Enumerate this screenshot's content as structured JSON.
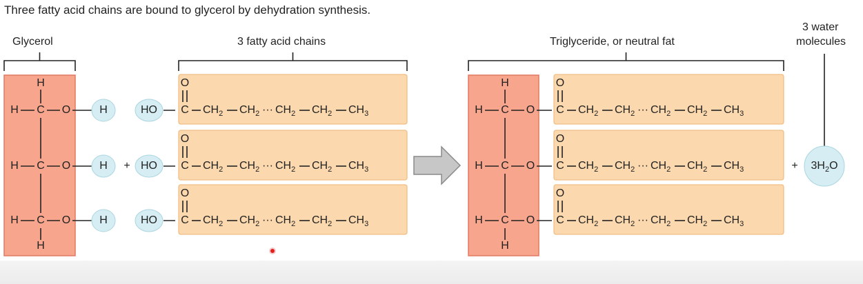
{
  "caption": "Three fatty acid chains are bound to glycerol by dehydration synthesis.",
  "labels": {
    "glycerol": "Glycerol",
    "fatty_acids": "3 fatty acid chains",
    "triglyceride": "Triglyceride, or neutral fat",
    "water_line1": "3 water",
    "water_line2": "molecules"
  },
  "atoms": {
    "H": "H",
    "C": "C",
    "O": "O",
    "HO": "HO",
    "plus": "+",
    "bond": "−"
  },
  "chain": {
    "seg1": "CH",
    "seg2": "CH",
    "seg3": "CH",
    "seg4": "CH",
    "end": "CH",
    "end_sub": "3",
    "sub": "2",
    "dots": "···"
  },
  "water": {
    "prefix": "3H",
    "sub": "2",
    "suffix": "O"
  },
  "colors": {
    "glycerol_fill": "#f7a58c",
    "glycerol_stroke": "#e07a60",
    "fatty_fill": "#fbd8ad",
    "fatty_stroke": "#f0bf86",
    "water_fill": "#d6eef3",
    "water_stroke": "#a9d6df",
    "arrow_fill": "#c7c7c7",
    "arrow_stroke": "#8a8a8a",
    "cursor": "#e02020"
  }
}
